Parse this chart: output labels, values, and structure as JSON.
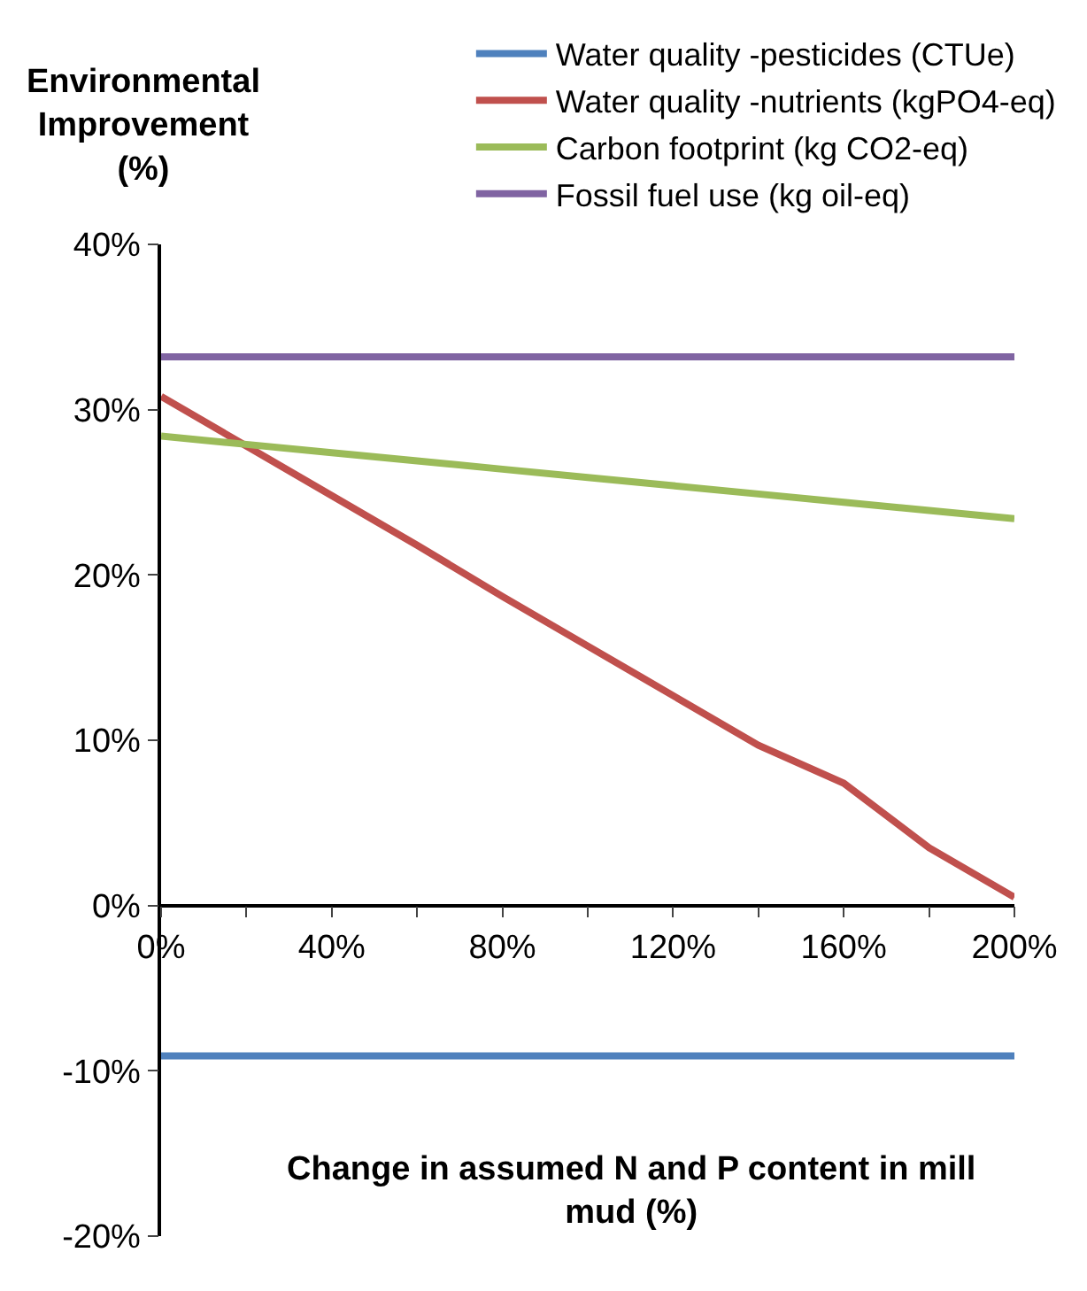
{
  "chart_data": {
    "type": "line",
    "xlabel": "Change in assumed N and P content in mill mud (%)",
    "ylabel": "Environmental Improvement (%)",
    "x": [
      0,
      20,
      40,
      60,
      80,
      100,
      120,
      140,
      160,
      180,
      200
    ],
    "series": [
      {
        "name": "Water quality -pesticides (CTUe)",
        "color": "#4f81bd",
        "values": [
          -9.1,
          -9.1,
          -9.1,
          -9.1,
          -9.1,
          -9.1,
          -9.1,
          -9.1,
          -9.1,
          -9.1,
          -9.1
        ]
      },
      {
        "name": "Water quality -nutrients (kgPO4-eq)",
        "color": "#c0504d",
        "values": [
          30.8,
          27.8,
          24.8,
          21.8,
          18.7,
          15.7,
          12.7,
          9.7,
          7.4,
          3.5,
          0.5
        ]
      },
      {
        "name": "Carbon footprint (kg CO2-eq)",
        "color": "#9bbb59",
        "values": [
          28.4,
          27.9,
          27.4,
          26.9,
          26.4,
          25.9,
          25.4,
          24.9,
          24.4,
          23.9,
          23.4
        ]
      },
      {
        "name": "Fossil fuel use (kg oil-eq)",
        "color": "#8064a2",
        "values": [
          33.2,
          33.2,
          33.2,
          33.2,
          33.2,
          33.2,
          33.2,
          33.2,
          33.2,
          33.2,
          33.2
        ]
      }
    ],
    "xlim": [
      0,
      200
    ],
    "xticks": [
      {
        "value": 0,
        "label": "0%"
      },
      {
        "value": 20,
        "label": null
      },
      {
        "value": 40,
        "label": "40%"
      },
      {
        "value": 60,
        "label": null
      },
      {
        "value": 80,
        "label": "80%"
      },
      {
        "value": 100,
        "label": null
      },
      {
        "value": 120,
        "label": "120%"
      },
      {
        "value": 140,
        "label": null
      },
      {
        "value": 160,
        "label": "160%"
      },
      {
        "value": 180,
        "label": null
      },
      {
        "value": 200,
        "label": "200%"
      }
    ],
    "ylim": [
      -20,
      40
    ],
    "yticks": [
      {
        "value": -20,
        "label": "-20%"
      },
      {
        "value": -10,
        "label": "-10%"
      },
      {
        "value": 0,
        "label": "0%"
      },
      {
        "value": 10,
        "label": "10%"
      },
      {
        "value": 20,
        "label": "20%"
      },
      {
        "value": 30,
        "label": "30%"
      },
      {
        "value": 40,
        "label": "40%"
      }
    ],
    "grid": false,
    "legend": "top right",
    "marker": "none",
    "line_style": "solid"
  }
}
